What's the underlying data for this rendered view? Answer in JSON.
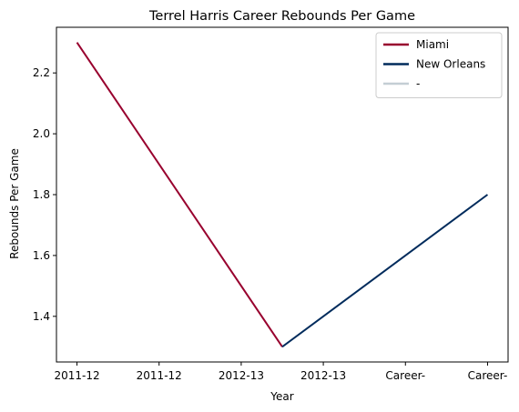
{
  "chart_data": {
    "type": "line",
    "title": "Terrel Harris Career Rebounds Per Game",
    "xlabel": "Year",
    "ylabel": "Rebounds Per Game",
    "x_tick_labels": [
      "2011-12",
      "2011-12",
      "2012-13",
      "2012-13",
      "Career-",
      "Career-"
    ],
    "xlim": [
      -0.25,
      5.25
    ],
    "ylim": [
      1.25,
      2.35
    ],
    "y_ticks": [
      1.4,
      1.6,
      1.8,
      2.0,
      2.2
    ],
    "y_tick_labels": [
      "1.4",
      "1.6",
      "1.8",
      "2.0",
      "2.2"
    ],
    "grid": false,
    "legend_position": "top-right",
    "series": [
      {
        "name": "Miami",
        "color": "#98002E",
        "points": [
          [
            0,
            2.3
          ],
          [
            2.5,
            1.3
          ]
        ]
      },
      {
        "name": "New Orleans",
        "color": "#002B5C",
        "points": [
          [
            2.5,
            1.3
          ],
          [
            5,
            1.8
          ]
        ]
      },
      {
        "name": "-",
        "color": "#C4CED4",
        "points": []
      }
    ]
  }
}
